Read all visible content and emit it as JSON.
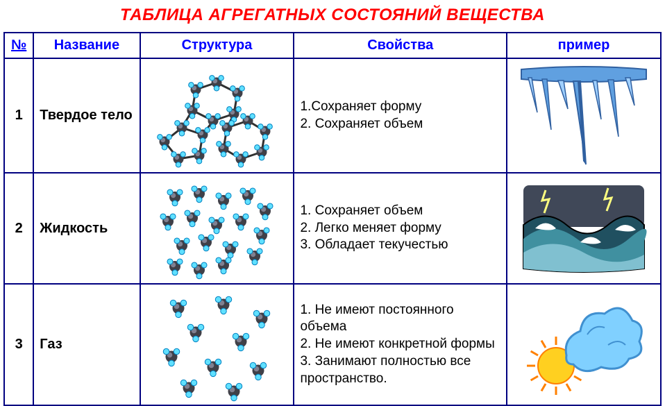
{
  "title": {
    "text": "ТАБЛИЦА АГРЕГАТНЫХ СОСТОЯНИЙ ВЕЩЕСТВА",
    "color": "#ff0000",
    "fontsize": 24
  },
  "headers": {
    "num": "№",
    "name": "Название",
    "structure": "Структура",
    "properties": "Свойства",
    "example": "пример",
    "color": "#0000ff",
    "fontsize": 20
  },
  "body_text": {
    "color": "#000000",
    "fontsize": 20
  },
  "border_color": "#000080",
  "rows": [
    {
      "num": "1",
      "name": "Твердое тело",
      "properties": "1.Сохраняет форму\n2. Сохраняет объем",
      "structure_type": "solid",
      "example_type": "icicles"
    },
    {
      "num": "2",
      "name": "Жидкость",
      "properties": "1. Сохраняет объем\n2. Легко меняет форму\n3. Обладает текучестью",
      "structure_type": "liquid",
      "example_type": "water"
    },
    {
      "num": "3",
      "name": "Газ",
      "properties": "1. Не имеют постоянного объема\n2. Не имеют конкретной формы\n3. Занимают полностью все пространство.",
      "structure_type": "gas",
      "example_type": "cloud_sun"
    }
  ],
  "molecule_colors": {
    "center": "#404048",
    "center_highlight": "#808090",
    "atom": "#60e0ff",
    "atom_stroke": "#0080c0",
    "bond": "#303030"
  },
  "example_colors": {
    "ice_light": "#a0d0ff",
    "ice_mid": "#60a0e0",
    "ice_dark": "#3060a0",
    "water_dark": "#205060",
    "water_mid": "#4090a0",
    "water_light": "#80c0d0",
    "water_foam": "#ffffff",
    "storm": "#404858",
    "lightning": "#ffff80",
    "sun": "#ffd020",
    "sun_orange": "#ff8000",
    "cloud": "#80d0ff",
    "cloud_dark": "#4090d0"
  },
  "row_heights": {
    "r1": 160,
    "r2": 155,
    "r3": 175
  }
}
